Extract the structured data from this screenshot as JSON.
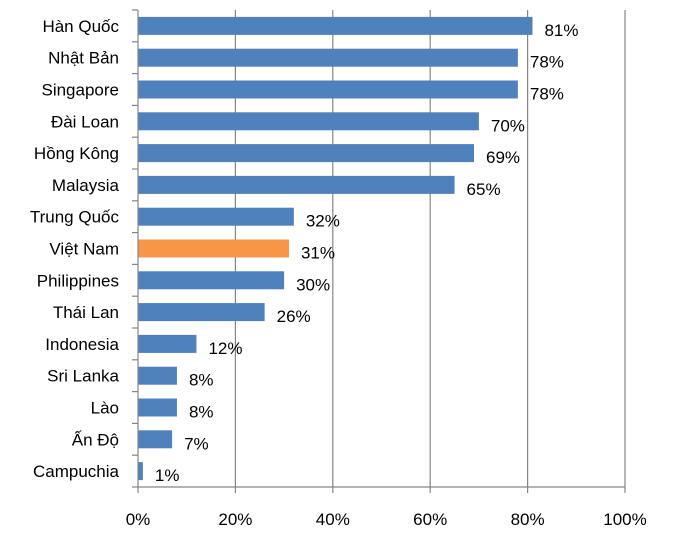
{
  "chart_data": {
    "type": "bar",
    "orientation": "horizontal",
    "categories": [
      "Hàn Quốc",
      "Nhật Bản",
      "Singapore",
      "Đài Loan",
      "Hồng Kông",
      "Malaysia",
      "Trung Quốc",
      "Việt Nam",
      "Philippines",
      "Thái Lan",
      "Indonesia",
      "Sri Lanka",
      "Lào",
      "Ấn Độ",
      "Campuchia"
    ],
    "values": [
      81,
      78,
      78,
      70,
      69,
      65,
      32,
      31,
      30,
      26,
      12,
      8,
      8,
      7,
      1
    ],
    "value_labels": [
      "81%",
      "78%",
      "78%",
      "70%",
      "69%",
      "65%",
      "32%",
      "31%",
      "30%",
      "26%",
      "12%",
      "8%",
      "8%",
      "7%",
      "1%"
    ],
    "xlim": [
      0,
      100
    ],
    "x_ticks": [
      0,
      20,
      40,
      60,
      80,
      100
    ],
    "x_tick_labels": [
      "0%",
      "20%",
      "40%",
      "60%",
      "80%",
      "100%"
    ],
    "grid": "vertical",
    "colors": {
      "bar": "#4F81BD",
      "highlight": "#F79646",
      "grid": "#868686",
      "axis": "#868686",
      "text": "#000000"
    },
    "highlight_category": "Việt Nam"
  }
}
